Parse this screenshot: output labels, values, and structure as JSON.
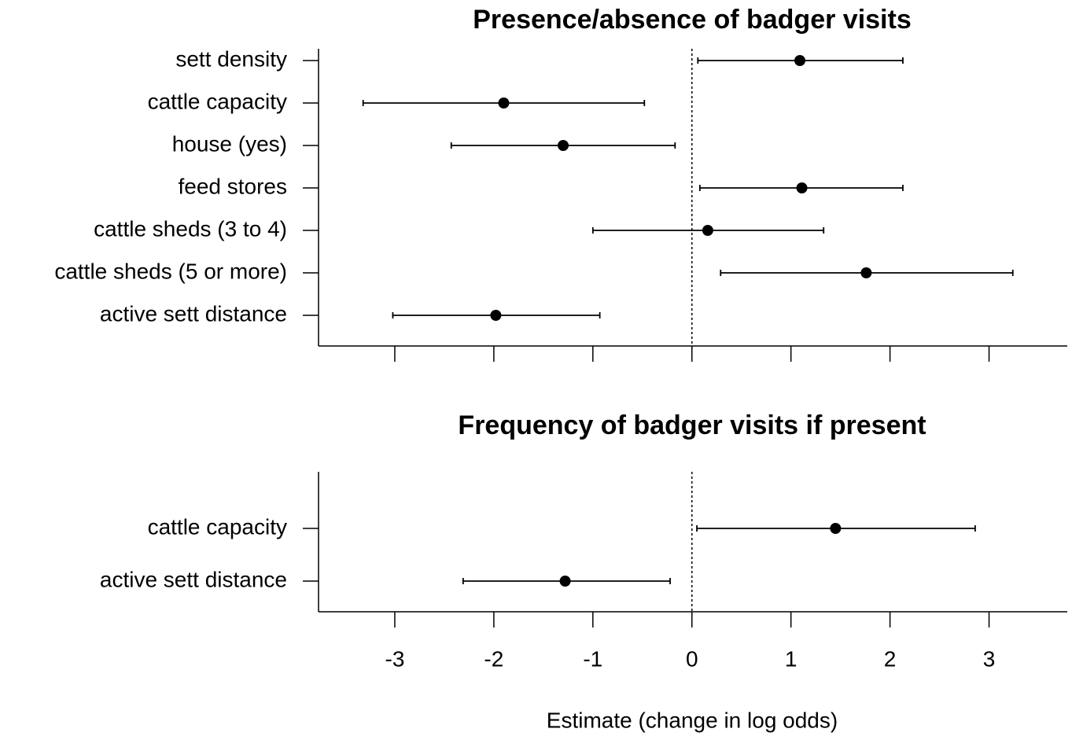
{
  "chart_data": [
    {
      "type": "forest",
      "title": "Presence/absence of badger visits",
      "categories": [
        "sett density",
        "cattle capacity",
        "house (yes)",
        "feed stores",
        "cattle sheds (3 to 4)",
        "cattle sheds (5 or more)",
        "active sett distance"
      ],
      "values": [
        1.09,
        -1.9,
        -1.3,
        1.11,
        0.16,
        1.76,
        -1.98
      ],
      "lower": [
        0.06,
        -3.32,
        -2.43,
        0.08,
        -1.0,
        0.29,
        -3.02
      ],
      "upper": [
        2.13,
        -0.48,
        -0.17,
        2.13,
        1.33,
        3.24,
        -0.93
      ],
      "color": "#000000",
      "reference_line": 0,
      "xlim": [
        -3.77,
        3.79
      ],
      "xticks": [
        -3,
        -2,
        -1,
        0,
        1,
        2,
        3
      ]
    },
    {
      "type": "forest",
      "title": "Frequency of badger visits if present",
      "categories": [
        "cattle capacity",
        "active sett distance"
      ],
      "values": [
        1.45,
        -1.28
      ],
      "lower": [
        0.05,
        -2.31
      ],
      "upper": [
        2.86,
        -0.22
      ],
      "color": "#000000",
      "reference_line": 0,
      "xlim": [
        -3.77,
        3.79
      ],
      "xticks": [
        -3,
        -2,
        -1,
        0,
        1,
        2,
        3
      ],
      "xlabel": "Estimate (change in log odds)"
    }
  ]
}
